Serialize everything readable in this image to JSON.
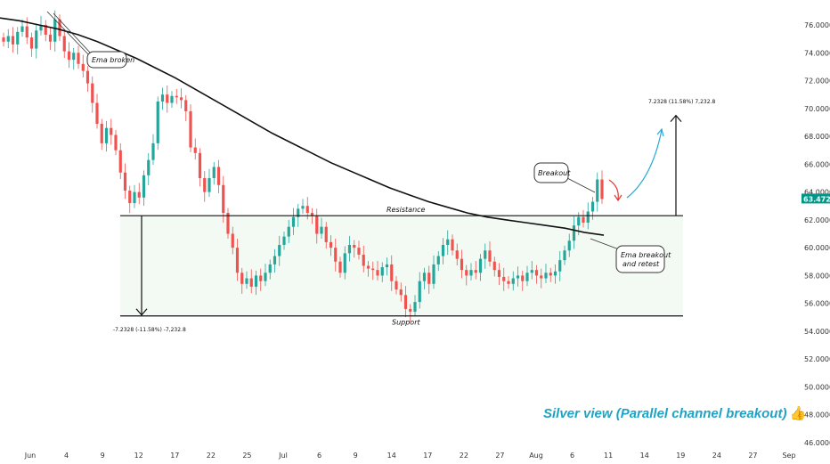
{
  "chart_data": {
    "type": "candlestick",
    "instrument_price_badge": "63.4720",
    "ylim": [
      46,
      77
    ],
    "y_ticks": [
      "76.0000",
      "74.0000",
      "72.0000",
      "70.0000",
      "68.0000",
      "66.0000",
      "64.0000",
      "62.0000",
      "60.0000",
      "58.0000",
      "56.0000",
      "54.0000",
      "52.0000",
      "50.0000",
      "48.0000",
      "46.0000"
    ],
    "x_ticks": [
      "Jun",
      "4",
      "9",
      "12",
      "17",
      "22",
      "25",
      "Jul",
      "6",
      "9",
      "14",
      "17",
      "22",
      "27",
      "Aug",
      "6",
      "11",
      "14",
      "19",
      "24",
      "27",
      "Sep"
    ],
    "resistance_level": 62.3,
    "support_level": 55.1,
    "series": [
      {
        "name": "Price",
        "close": [
          74.8,
          75.2,
          74.6,
          75.5,
          75.9,
          75.1,
          74.3,
          75.6,
          76.0,
          75.3,
          74.8,
          76.4,
          75.2,
          74.1,
          73.5,
          74.0,
          73.2,
          72.7,
          71.8,
          70.4,
          68.9,
          67.5,
          68.6,
          68.1,
          67.0,
          65.4,
          64.1,
          63.2,
          64.0,
          63.6,
          65.2,
          66.3,
          67.5,
          70.5,
          71.0,
          70.4,
          70.9,
          70.8,
          70.6,
          69.8,
          67.2,
          66.8,
          65.0,
          64.0,
          65.0,
          65.8,
          64.5,
          62.5,
          61.0,
          60.0,
          58.2,
          57.4,
          57.8,
          57.2,
          58.0,
          57.6,
          58.2,
          58.8,
          59.4,
          60.2,
          60.8,
          61.5,
          62.2,
          62.8,
          63.0,
          62.5,
          62.3,
          61.0,
          61.5,
          60.4,
          60.0,
          59.0,
          58.2,
          59.6,
          60.2,
          60.0,
          59.5,
          58.7,
          58.5,
          58.4,
          58.0,
          58.6,
          58.8,
          57.6,
          57.0,
          56.6,
          55.6,
          55.4,
          56.1,
          57.6,
          58.2,
          57.4,
          58.8,
          59.4,
          60.2,
          60.6,
          59.8,
          59.2,
          58.4,
          58.0,
          58.4,
          58.2,
          59.2,
          59.8,
          59.0,
          58.4,
          57.9,
          57.6,
          57.4,
          57.8,
          58.0,
          57.6,
          58.2,
          58.4,
          58.0,
          57.8,
          58.2,
          58.0,
          58.3,
          59.1,
          59.8,
          60.5,
          61.6,
          62.2,
          61.8,
          62.6,
          63.3,
          64.9,
          63.5
        ]
      },
      {
        "name": "EMA",
        "values": [
          76.5,
          76.3,
          76.0,
          75.7,
          75.3,
          74.8,
          74.2,
          73.6,
          72.9,
          72.2,
          71.4,
          70.6,
          69.8,
          69.0,
          68.2,
          67.5,
          66.8,
          66.1,
          65.5,
          64.9,
          64.3,
          63.8,
          63.3,
          62.9,
          62.5,
          62.2,
          62.0,
          61.8,
          61.6,
          61.4,
          61.1,
          60.9
        ]
      }
    ],
    "annotations": {
      "ema_broken": "Ema broken",
      "breakout": "Breakout",
      "ema_breakout_retest_line1": "Ema breakout",
      "ema_breakout_retest_line2": "and retest",
      "resistance": "Resistance",
      "support": "Support",
      "measure_up": "7.2328 (11.58%) 7,232.8",
      "measure_down": "-7.2328 (-11.58%) -7,232.8"
    }
  },
  "footer": {
    "caption": "Silver view (Parallel channel breakout)",
    "icon": "thumbs-up-icon"
  },
  "colors": {
    "up": "#26a69a",
    "down": "#ef5350",
    "ema": "#111111",
    "channel_fill": "#f3faf3",
    "badge": "#009688",
    "arrow_up": "#29a8d8",
    "arrow_down": "#e53935",
    "caption": "#1fa3c4"
  }
}
